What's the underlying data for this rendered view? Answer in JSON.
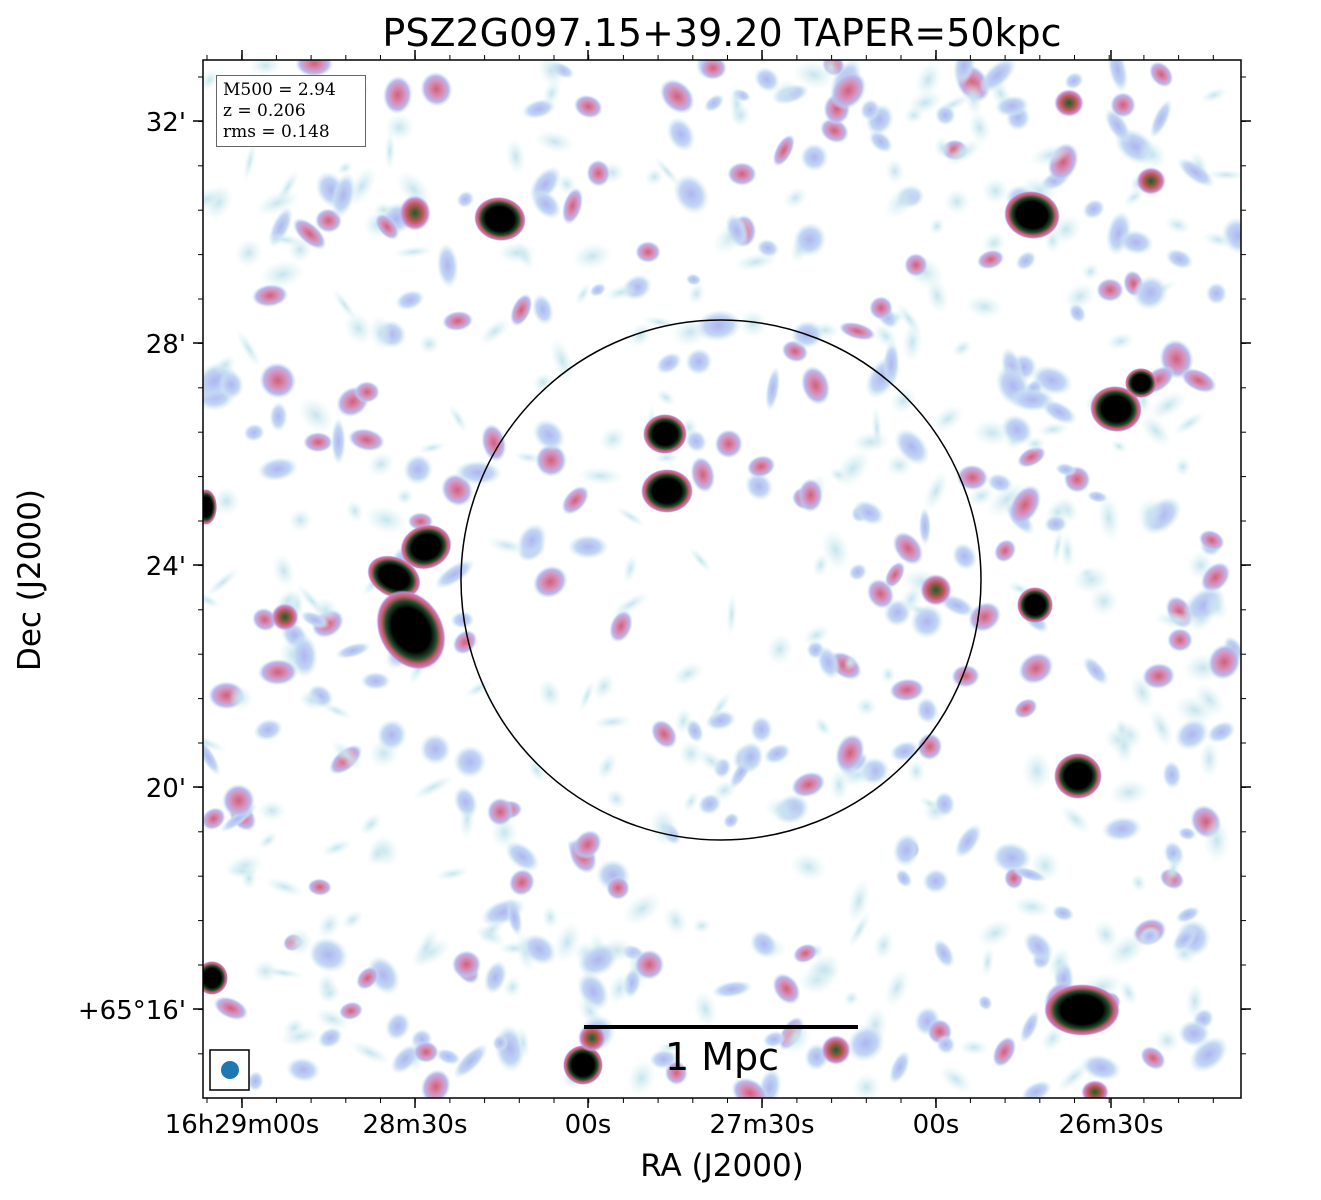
{
  "figure": {
    "title": "PSZ2G097.15+39.20 TAPER=50kpc",
    "xlabel": "RA (J2000)",
    "ylabel": "Dec (J2000)",
    "dec_ticks": [
      "32'",
      "28'",
      "24'",
      "20'",
      "+65°16'"
    ],
    "ra_ticks": [
      "16h29m00s",
      "28m30s",
      "00s",
      "27m30s",
      "00s",
      "26m30s"
    ],
    "info": {
      "mass": "M500 = 2.94",
      "redshift": "z = 0.206",
      "rms": "rms = 0.148"
    },
    "scalebar_label": "1 Mpc",
    "beam_color": "#1f77b4",
    "circle_color": "#000000"
  }
}
